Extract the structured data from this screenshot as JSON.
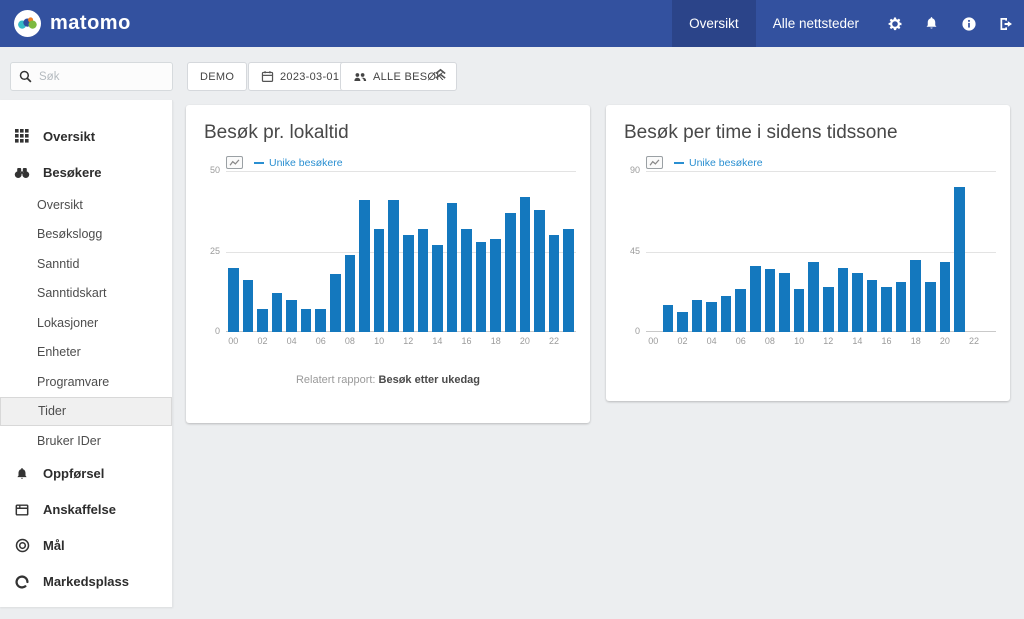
{
  "navbar": {
    "brand": "matomo",
    "tabs": [
      {
        "label": "Oversikt",
        "active": true
      },
      {
        "label": "Alle nettsteder",
        "active": false
      }
    ],
    "icon_names": [
      "gear-icon",
      "bell-icon",
      "info-icon",
      "signout-icon"
    ],
    "colors": {
      "bar_bg": "#33519f",
      "active_tab_bg": "#2b4489"
    }
  },
  "toolbar": {
    "search_placeholder": "Søk",
    "site_button": "DEMO",
    "date_button": "2023-03-01",
    "segment_button": "ALLE BESØK"
  },
  "sidebar": {
    "items": [
      {
        "label": "Oversikt",
        "type": "category",
        "icon": "grid-icon"
      },
      {
        "label": "Besøkere",
        "type": "category",
        "icon": "binoculars-icon"
      },
      {
        "label": "Oversikt",
        "type": "sub"
      },
      {
        "label": "Besøkslogg",
        "type": "sub"
      },
      {
        "label": "Sanntid",
        "type": "sub"
      },
      {
        "label": "Sanntidskart",
        "type": "sub"
      },
      {
        "label": "Lokasjoner",
        "type": "sub"
      },
      {
        "label": "Enheter",
        "type": "sub"
      },
      {
        "label": "Programvare",
        "type": "sub"
      },
      {
        "label": "Tider",
        "type": "sub",
        "selected": true
      },
      {
        "label": "Bruker IDer",
        "type": "sub"
      },
      {
        "label": "Oppførsel",
        "type": "category",
        "icon": "bell-icon"
      },
      {
        "label": "Anskaffelse",
        "type": "category",
        "icon": "window-icon"
      },
      {
        "label": "Mål",
        "type": "category",
        "icon": "target-icon"
      },
      {
        "label": "Markedsplass",
        "type": "category",
        "icon": "marketplace-icon"
      }
    ]
  },
  "chart_data": [
    {
      "type": "bar",
      "title": "Besøk pr. lokaltid",
      "legend_label": "Unike besøkere",
      "x": [
        "00",
        "01",
        "02",
        "03",
        "04",
        "05",
        "06",
        "07",
        "08",
        "09",
        "10",
        "11",
        "12",
        "13",
        "14",
        "15",
        "16",
        "17",
        "18",
        "19",
        "20",
        "21",
        "22",
        "23"
      ],
      "tick_every": 2,
      "values": [
        20,
        16,
        7,
        12,
        10,
        7,
        7,
        18,
        24,
        41,
        32,
        41,
        30,
        32,
        27,
        40,
        32,
        28,
        29,
        37,
        42,
        38,
        30,
        32
      ],
      "ylim": [
        0,
        50
      ],
      "yticks": [
        0,
        25,
        50
      ],
      "bar_color": "#1478be",
      "grid": true,
      "legend_position": "top",
      "footer_prefix": "Relatert rapport:",
      "footer_link": "Besøk etter ukedag"
    },
    {
      "type": "bar",
      "title": "Besøk per time i sidens tidssone",
      "legend_label": "Unike besøkere",
      "x": [
        "00",
        "01",
        "02",
        "03",
        "04",
        "05",
        "06",
        "07",
        "08",
        "09",
        "10",
        "11",
        "12",
        "13",
        "14",
        "15",
        "16",
        "17",
        "18",
        "19",
        "20",
        "21",
        "22",
        "23"
      ],
      "tick_every": 2,
      "values": [
        0,
        15,
        11,
        18,
        17,
        20,
        24,
        37,
        35,
        33,
        24,
        39,
        25,
        36,
        33,
        29,
        25,
        28,
        40,
        28,
        39,
        81,
        0,
        0
      ],
      "ylim": [
        0,
        90
      ],
      "yticks": [
        0,
        45,
        90
      ],
      "bar_color": "#1478be",
      "grid": true,
      "legend_position": "top"
    }
  ]
}
